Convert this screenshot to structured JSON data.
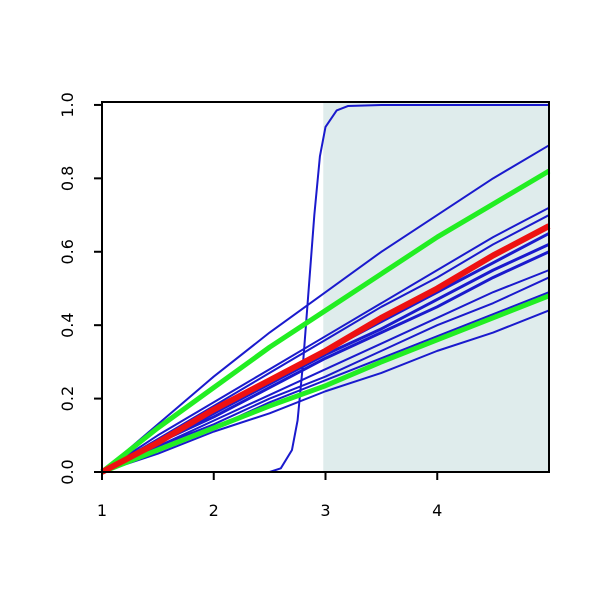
{
  "chart_data": {
    "type": "line",
    "x": [
      1,
      1.5,
      2,
      2.5,
      3,
      3.5,
      4,
      4.5,
      5
    ],
    "xlim": [
      1,
      5
    ],
    "ylim": [
      0,
      1.008
    ],
    "xticks": [
      1,
      2,
      3,
      4
    ],
    "yticks": [
      {
        "value": 0,
        "label": "0.0"
      },
      {
        "value": 0.2,
        "label": "0.2"
      },
      {
        "value": 0.4,
        "label": "0.4"
      },
      {
        "value": 0.6,
        "label": "0.6"
      },
      {
        "value": 0.8,
        "label": "0.8"
      },
      {
        "value": 1,
        "label": "1.0"
      }
    ],
    "shade_xlim": [
      2.98,
      5
    ],
    "shade_color": "#dfecec",
    "series": [
      {
        "color": "#1a1acd",
        "width": 2,
        "values": [
          0,
          0.13,
          0.26,
          0.38,
          0.49,
          0.6,
          0.7,
          0.8,
          0.89
        ]
      },
      {
        "color": "#1a1acd",
        "width": 2,
        "values": [
          0,
          0.1,
          0.19,
          0.28,
          0.37,
          0.46,
          0.55,
          0.64,
          0.72
        ]
      },
      {
        "color": "#1a1acd",
        "width": 2,
        "values": [
          0,
          0.09,
          0.18,
          0.27,
          0.36,
          0.45,
          0.53,
          0.62,
          0.7
        ]
      },
      {
        "color": "#1a1acd",
        "width": 3,
        "values": [
          0,
          0.08,
          0.16,
          0.25,
          0.33,
          0.41,
          0.49,
          0.57,
          0.65
        ]
      },
      {
        "color": "#1a1acd",
        "width": 3,
        "values": [
          0,
          0.08,
          0.16,
          0.24,
          0.32,
          0.39,
          0.47,
          0.55,
          0.62
        ]
      },
      {
        "color": "#1a1acd",
        "width": 3,
        "values": [
          0,
          0.08,
          0.15,
          0.23,
          0.31,
          0.38,
          0.45,
          0.53,
          0.6
        ]
      },
      {
        "color": "#1a1acd",
        "width": 2,
        "values": [
          0,
          0.07,
          0.14,
          0.21,
          0.28,
          0.35,
          0.42,
          0.49,
          0.55
        ]
      },
      {
        "color": "#1a1acd",
        "width": 2,
        "values": [
          0,
          0.07,
          0.13,
          0.2,
          0.26,
          0.33,
          0.4,
          0.46,
          0.53
        ]
      },
      {
        "color": "#1a1acd",
        "width": 2,
        "values": [
          0,
          0.06,
          0.12,
          0.19,
          0.25,
          0.31,
          0.37,
          0.43,
          0.49
        ]
      },
      {
        "color": "#1a1acd",
        "width": 2,
        "values": [
          0,
          0.05,
          0.11,
          0.16,
          0.22,
          0.27,
          0.33,
          0.38,
          0.44
        ]
      },
      {
        "color": "#1a1acd",
        "width": 2,
        "x": [
          1,
          2.5,
          2.6,
          2.7,
          2.75,
          2.8,
          2.85,
          2.9,
          2.95,
          3,
          3.1,
          3.2,
          3.5,
          5
        ],
        "values": [
          0,
          0,
          0.01,
          0.06,
          0.14,
          0.3,
          0.5,
          0.7,
          0.86,
          0.94,
          0.985,
          0.997,
          1,
          1
        ]
      },
      {
        "color": "#22ee22",
        "width": 5,
        "values": [
          0,
          0.12,
          0.23,
          0.34,
          0.44,
          0.54,
          0.64,
          0.73,
          0.82
        ]
      },
      {
        "color": "#22ee22",
        "width": 5,
        "values": [
          0,
          0.06,
          0.12,
          0.18,
          0.235,
          0.3,
          0.36,
          0.42,
          0.48
        ]
      },
      {
        "color": "#ee1111",
        "width": 6,
        "values": [
          0,
          0.08,
          0.17,
          0.25,
          0.33,
          0.42,
          0.5,
          0.59,
          0.67
        ]
      }
    ]
  }
}
